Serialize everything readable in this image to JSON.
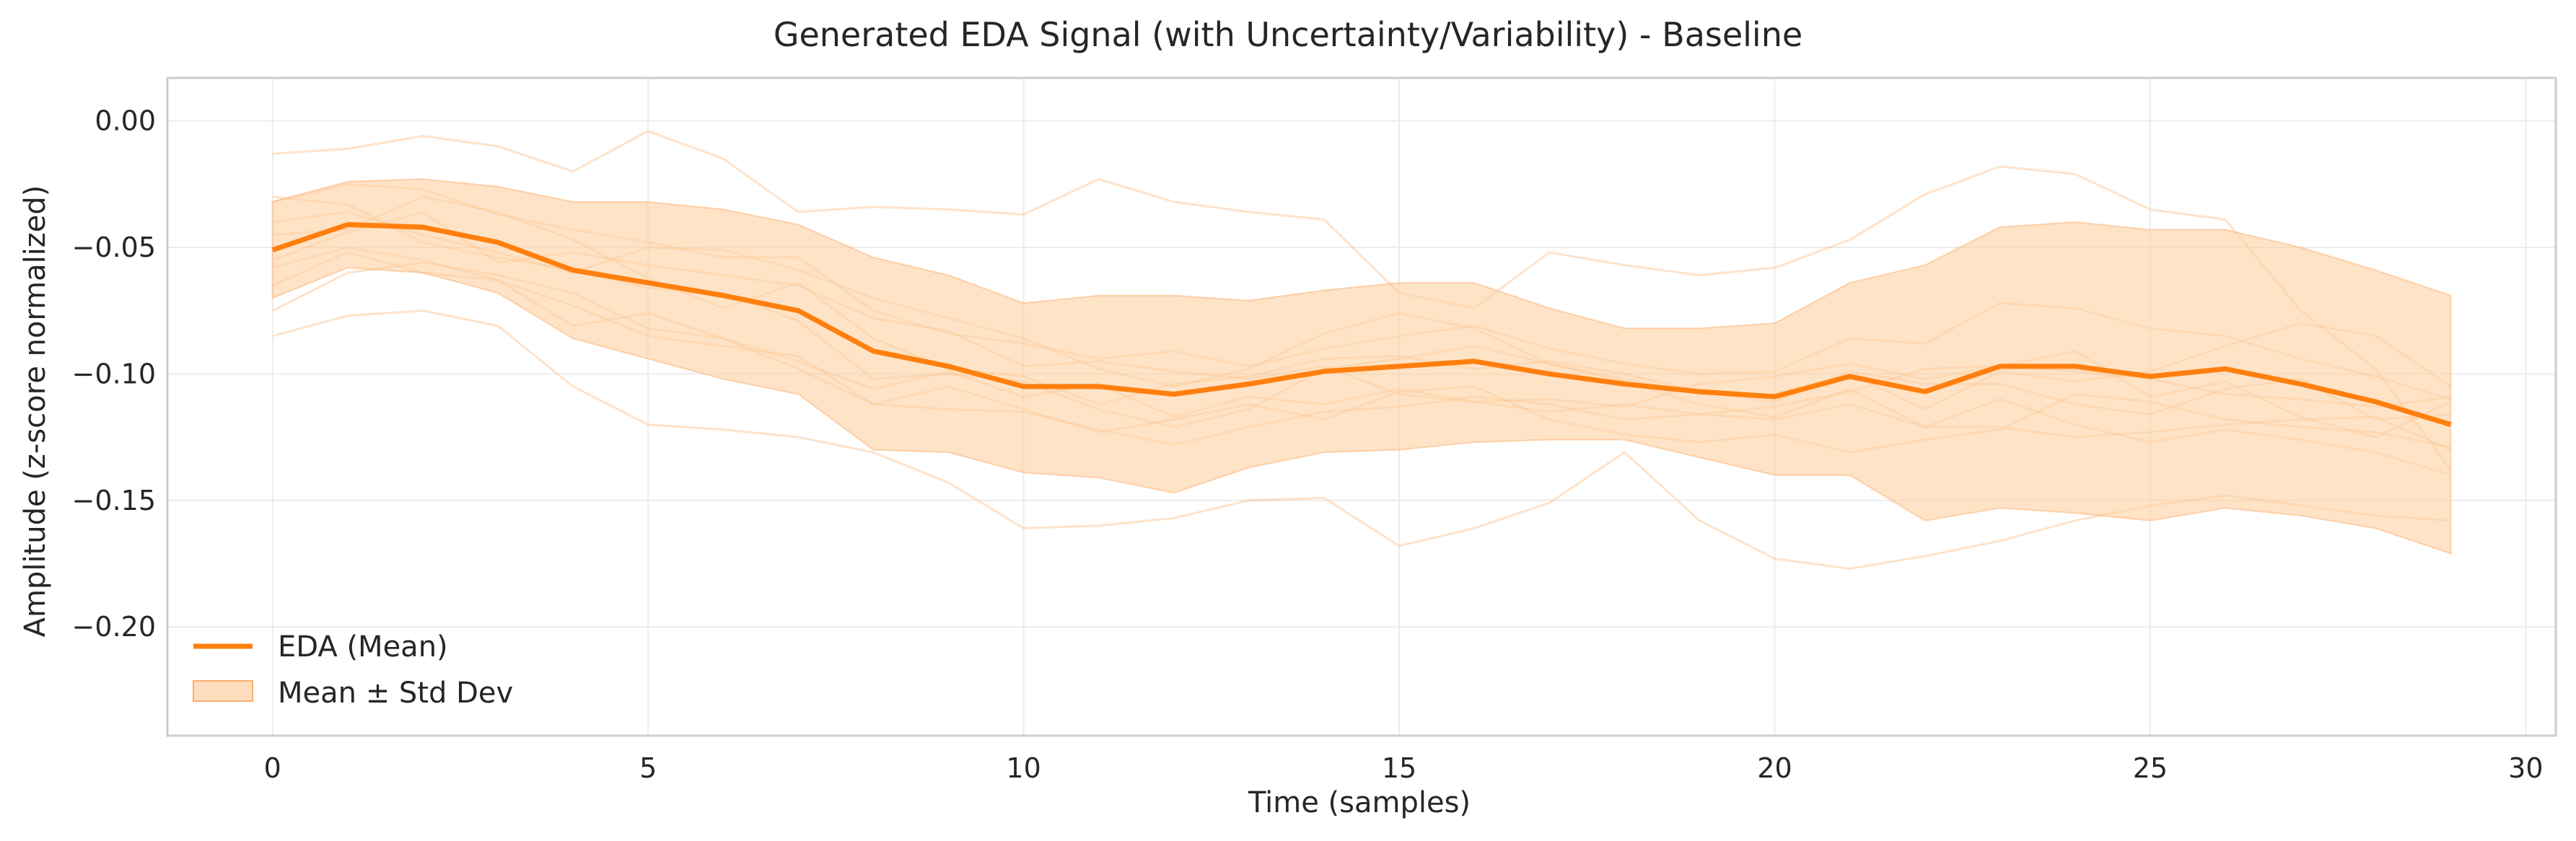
{
  "chart_data": {
    "type": "line",
    "title": "Generated EDA Signal (with Uncertainty/Variability) - Baseline",
    "xlabel": "Time (samples)",
    "ylabel": "Amplitude (z-score normalized)",
    "xlim": [
      -1.4,
      30.4
    ],
    "ylim": [
      -0.243,
      0.017
    ],
    "xticks": [
      0,
      5,
      10,
      15,
      20,
      25,
      30
    ],
    "xtick_labels": [
      "0",
      "5",
      "10",
      "15",
      "20",
      "25",
      "30"
    ],
    "yticks": [
      0.0,
      -0.05,
      -0.1,
      -0.15,
      -0.2
    ],
    "ytick_labels": [
      "0.00",
      "−0.05",
      "−0.10",
      "−0.15",
      "−0.20"
    ],
    "grid": true,
    "legend_position": "lower-left",
    "x": [
      0,
      1,
      2,
      3,
      4,
      5,
      6,
      7,
      8,
      9,
      10,
      11,
      12,
      13,
      14,
      15,
      16,
      17,
      18,
      19,
      20,
      21,
      22,
      23,
      24,
      25,
      26,
      27,
      28,
      29
    ],
    "series": [
      {
        "name": "EDA (Mean)",
        "color": "#ff7f0e",
        "values": [
          -0.051,
          -0.041,
          -0.042,
          -0.048,
          -0.059,
          -0.064,
          -0.069,
          -0.075,
          -0.091,
          -0.097,
          -0.105,
          -0.105,
          -0.108,
          -0.104,
          -0.099,
          -0.097,
          -0.095,
          -0.1,
          -0.104,
          -0.107,
          -0.109,
          -0.101,
          -0.107,
          -0.097,
          -0.097,
          -0.101,
          -0.098,
          -0.104,
          -0.111,
          -0.12
        ]
      }
    ],
    "band": {
      "name": "Mean ± Std Dev",
      "color": "#fdd0a2",
      "upper": [
        -0.032,
        -0.024,
        -0.023,
        -0.026,
        -0.032,
        -0.032,
        -0.035,
        -0.041,
        -0.054,
        -0.061,
        -0.072,
        -0.069,
        -0.069,
        -0.071,
        -0.067,
        -0.064,
        -0.064,
        -0.074,
        -0.082,
        -0.082,
        -0.08,
        -0.064,
        -0.057,
        -0.042,
        -0.04,
        -0.043,
        -0.043,
        -0.05,
        -0.059,
        -0.069
      ],
      "lower": [
        -0.07,
        -0.058,
        -0.06,
        -0.068,
        -0.086,
        -0.094,
        -0.102,
        -0.108,
        -0.13,
        -0.131,
        -0.139,
        -0.141,
        -0.147,
        -0.137,
        -0.131,
        -0.13,
        -0.127,
        -0.126,
        -0.126,
        -0.133,
        -0.14,
        -0.14,
        -0.158,
        -0.153,
        -0.155,
        -0.158,
        -0.153,
        -0.156,
        -0.161,
        -0.171
      ]
    },
    "samples": [
      [
        -0.013,
        -0.011,
        -0.006,
        -0.01,
        -0.02,
        -0.004,
        -0.015,
        -0.036,
        -0.034,
        -0.035,
        -0.037,
        -0.023,
        -0.032,
        -0.036,
        -0.039,
        -0.068,
        -0.074,
        -0.052,
        -0.057,
        -0.061,
        -0.058,
        -0.047,
        -0.029,
        -0.018,
        -0.021,
        -0.035,
        -0.039,
        -0.075,
        -0.098,
        -0.138
      ],
      [
        -0.085,
        -0.077,
        -0.075,
        -0.081,
        -0.105,
        -0.12,
        -0.122,
        -0.125,
        -0.131,
        -0.143,
        -0.161,
        -0.16,
        -0.157,
        -0.15,
        -0.149,
        -0.168,
        -0.161,
        -0.151,
        -0.131,
        -0.158,
        -0.173,
        -0.177,
        -0.172,
        -0.166,
        -0.158,
        -0.152,
        -0.148,
        -0.152,
        -0.156,
        -0.158
      ],
      [
        -0.04,
        -0.036,
        -0.045,
        -0.052,
        -0.06,
        -0.05,
        -0.051,
        -0.059,
        -0.07,
        -0.078,
        -0.086,
        -0.098,
        -0.105,
        -0.098,
        -0.084,
        -0.076,
        -0.082,
        -0.096,
        -0.102,
        -0.108,
        -0.108,
        -0.1,
        -0.114,
        -0.099,
        -0.103,
        -0.099,
        -0.089,
        -0.08,
        -0.085,
        -0.105
      ],
      [
        -0.065,
        -0.052,
        -0.06,
        -0.063,
        -0.073,
        -0.085,
        -0.089,
        -0.093,
        -0.112,
        -0.105,
        -0.114,
        -0.123,
        -0.118,
        -0.112,
        -0.118,
        -0.107,
        -0.105,
        -0.118,
        -0.124,
        -0.127,
        -0.124,
        -0.131,
        -0.126,
        -0.122,
        -0.108,
        -0.111,
        -0.118,
        -0.121,
        -0.123,
        -0.129
      ],
      [
        -0.03,
        -0.033,
        -0.048,
        -0.054,
        -0.059,
        -0.066,
        -0.068,
        -0.079,
        -0.102,
        -0.1,
        -0.103,
        -0.114,
        -0.121,
        -0.114,
        -0.098,
        -0.094,
        -0.089,
        -0.096,
        -0.103,
        -0.112,
        -0.117,
        -0.106,
        -0.121,
        -0.121,
        -0.125,
        -0.123,
        -0.12,
        -0.118,
        -0.117,
        -0.13
      ],
      [
        -0.055,
        -0.044,
        -0.036,
        -0.056,
        -0.052,
        -0.057,
        -0.061,
        -0.065,
        -0.078,
        -0.083,
        -0.097,
        -0.095,
        -0.099,
        -0.102,
        -0.097,
        -0.108,
        -0.111,
        -0.11,
        -0.113,
        -0.104,
        -0.101,
        -0.096,
        -0.102,
        -0.097,
        -0.091,
        -0.109,
        -0.103,
        -0.117,
        -0.125,
        -0.111
      ],
      [
        -0.045,
        -0.043,
        -0.03,
        -0.036,
        -0.047,
        -0.062,
        -0.074,
        -0.064,
        -0.086,
        -0.098,
        -0.101,
        -0.112,
        -0.104,
        -0.101,
        -0.094,
        -0.093,
        -0.098,
        -0.095,
        -0.1,
        -0.107,
        -0.111,
        -0.099,
        -0.104,
        -0.104,
        -0.112,
        -0.116,
        -0.106,
        -0.102,
        -0.118,
        -0.116
      ],
      [
        -0.075,
        -0.06,
        -0.056,
        -0.061,
        -0.068,
        -0.082,
        -0.086,
        -0.095,
        -0.106,
        -0.099,
        -0.109,
        -0.104,
        -0.117,
        -0.109,
        -0.112,
        -0.106,
        -0.111,
        -0.115,
        -0.112,
        -0.116,
        -0.113,
        -0.107,
        -0.098,
        -0.097,
        -0.099,
        -0.102,
        -0.108,
        -0.11,
        -0.113,
        -0.109
      ],
      [
        -0.032,
        -0.025,
        -0.027,
        -0.037,
        -0.043,
        -0.048,
        -0.054,
        -0.054,
        -0.075,
        -0.084,
        -0.088,
        -0.094,
        -0.091,
        -0.097,
        -0.09,
        -0.085,
        -0.081,
        -0.09,
        -0.096,
        -0.1,
        -0.099,
        -0.086,
        -0.088,
        -0.072,
        -0.074,
        -0.082,
        -0.085,
        -0.094,
        -0.101,
        -0.11
      ],
      [
        -0.058,
        -0.05,
        -0.055,
        -0.063,
        -0.081,
        -0.076,
        -0.086,
        -0.098,
        -0.112,
        -0.114,
        -0.115,
        -0.122,
        -0.128,
        -0.121,
        -0.115,
        -0.113,
        -0.109,
        -0.112,
        -0.118,
        -0.116,
        -0.118,
        -0.112,
        -0.121,
        -0.11,
        -0.12,
        -0.127,
        -0.122,
        -0.126,
        -0.131,
        -0.14
      ]
    ]
  }
}
